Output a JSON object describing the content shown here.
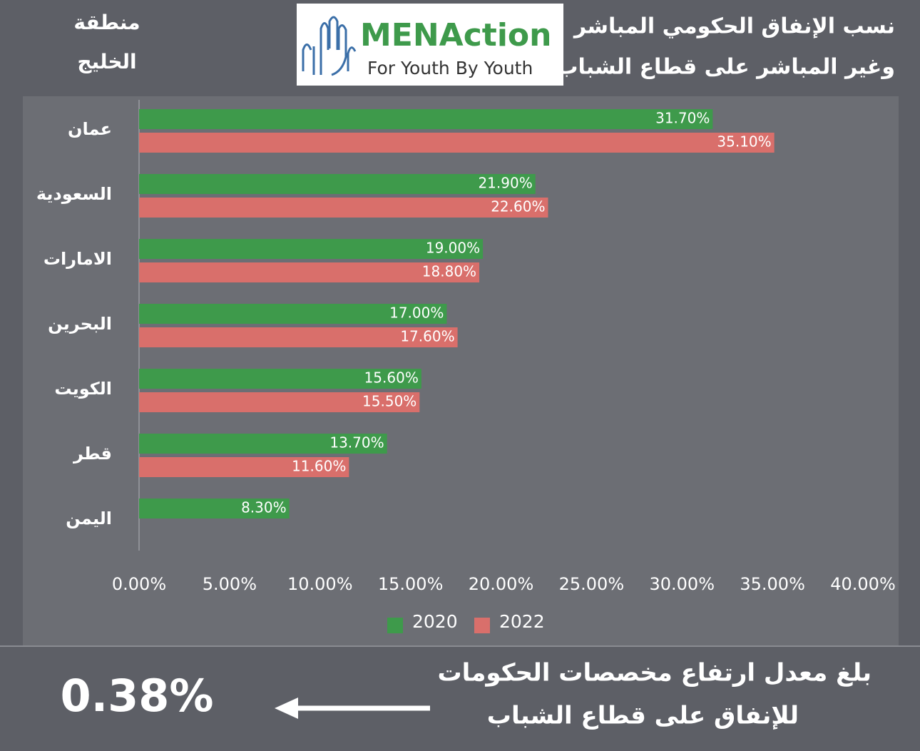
{
  "header": {
    "title": [
      "نسب الإنفاق الحكومي المباشر",
      "وغير المباشر على قطاع الشباب"
    ],
    "region": [
      "منطقة",
      "الخليج"
    ],
    "logo": {
      "name": "MENAction",
      "tagline": "For Youth By Youth"
    }
  },
  "chart_data": {
    "type": "bar",
    "orientation": "horizontal",
    "categories": [
      "عمان",
      "السعودية",
      "الامارات",
      "البحرين",
      "الكويت",
      "قطر",
      "اليمن"
    ],
    "series": [
      {
        "name": "2020",
        "color": "#3e9a4b",
        "values": [
          31.7,
          21.9,
          19.0,
          17.0,
          15.6,
          13.7,
          8.3
        ],
        "value_labels": [
          "31.70%",
          "21.90%",
          "19.00%",
          "17.00%",
          "15.60%",
          "13.70%",
          "8.30%"
        ]
      },
      {
        "name": "2022",
        "color": "#d96f6b",
        "values": [
          35.1,
          22.6,
          18.8,
          17.6,
          15.5,
          11.6,
          null
        ],
        "value_labels": [
          "35.10%",
          "22.60%",
          "18.80%",
          "17.60%",
          "15.50%",
          "11.60%",
          null
        ]
      }
    ],
    "xlim": [
      0,
      40
    ],
    "xticks": [
      {
        "value": 0,
        "label": "0.00%"
      },
      {
        "value": 5,
        "label": "5.00%"
      },
      {
        "value": 10,
        "label": "10.00%"
      },
      {
        "value": 15,
        "label": "15.00%"
      },
      {
        "value": 20,
        "label": "20.00%"
      },
      {
        "value": 25,
        "label": "25.00%"
      },
      {
        "value": 30,
        "label": "30.00%"
      },
      {
        "value": 35,
        "label": "35.00%"
      },
      {
        "value": 40,
        "label": "40.00%"
      }
    ],
    "grid": false,
    "legend": "bottom"
  },
  "footer": {
    "text": [
      "بلغ معدل ارتفاع مخصصات الحكومات",
      "للإنفاق على قطاع الشباب"
    ],
    "figure": "0.38%"
  }
}
